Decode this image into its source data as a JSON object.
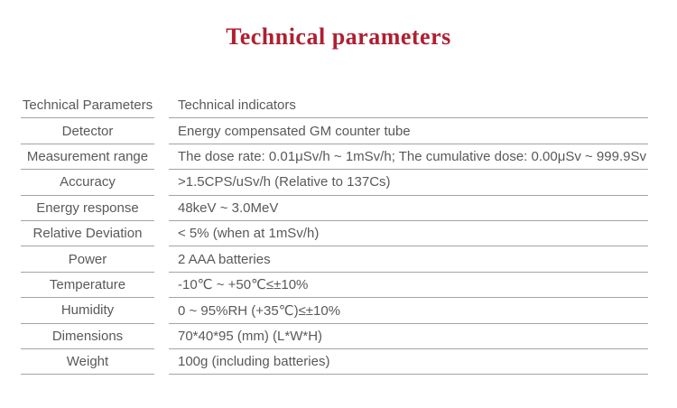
{
  "page": {
    "title": "Technical parameters",
    "title_color": "#b01f30",
    "text_color": "#595959",
    "border_color": "#a3a3a3"
  },
  "table": {
    "header": {
      "param": "Technical Parameters",
      "value": "Technical indicators"
    },
    "rows": [
      {
        "param": "Detector",
        "value": "Energy compensated GM counter tube"
      },
      {
        "param": "Measurement range",
        "value": "The dose rate: 0.01μSv/h ~ 1mSv/h; The cumulative dose: 0.00μSv ~ 999.9Sv"
      },
      {
        "param": "Accuracy",
        "value": ">1.5CPS/uSv/h (Relative to 137Cs)"
      },
      {
        "param": "Energy response",
        "value": "48keV ~ 3.0MeV"
      },
      {
        "param": "Relative Deviation",
        "value": "< 5% (when at 1mSv/h)"
      },
      {
        "param": "Power",
        "value": "2 AAA batteries"
      },
      {
        "param": "Temperature",
        "value": "-10℃ ~ +50℃≤±10%"
      },
      {
        "param": "Humidity",
        "value": "0 ~ 95%RH (+35℃)≤±10%"
      },
      {
        "param": "Dimensions",
        "value": "70*40*95 (mm) (L*W*H)"
      },
      {
        "param": "Weight",
        "value": "100g (including batteries)"
      }
    ]
  }
}
